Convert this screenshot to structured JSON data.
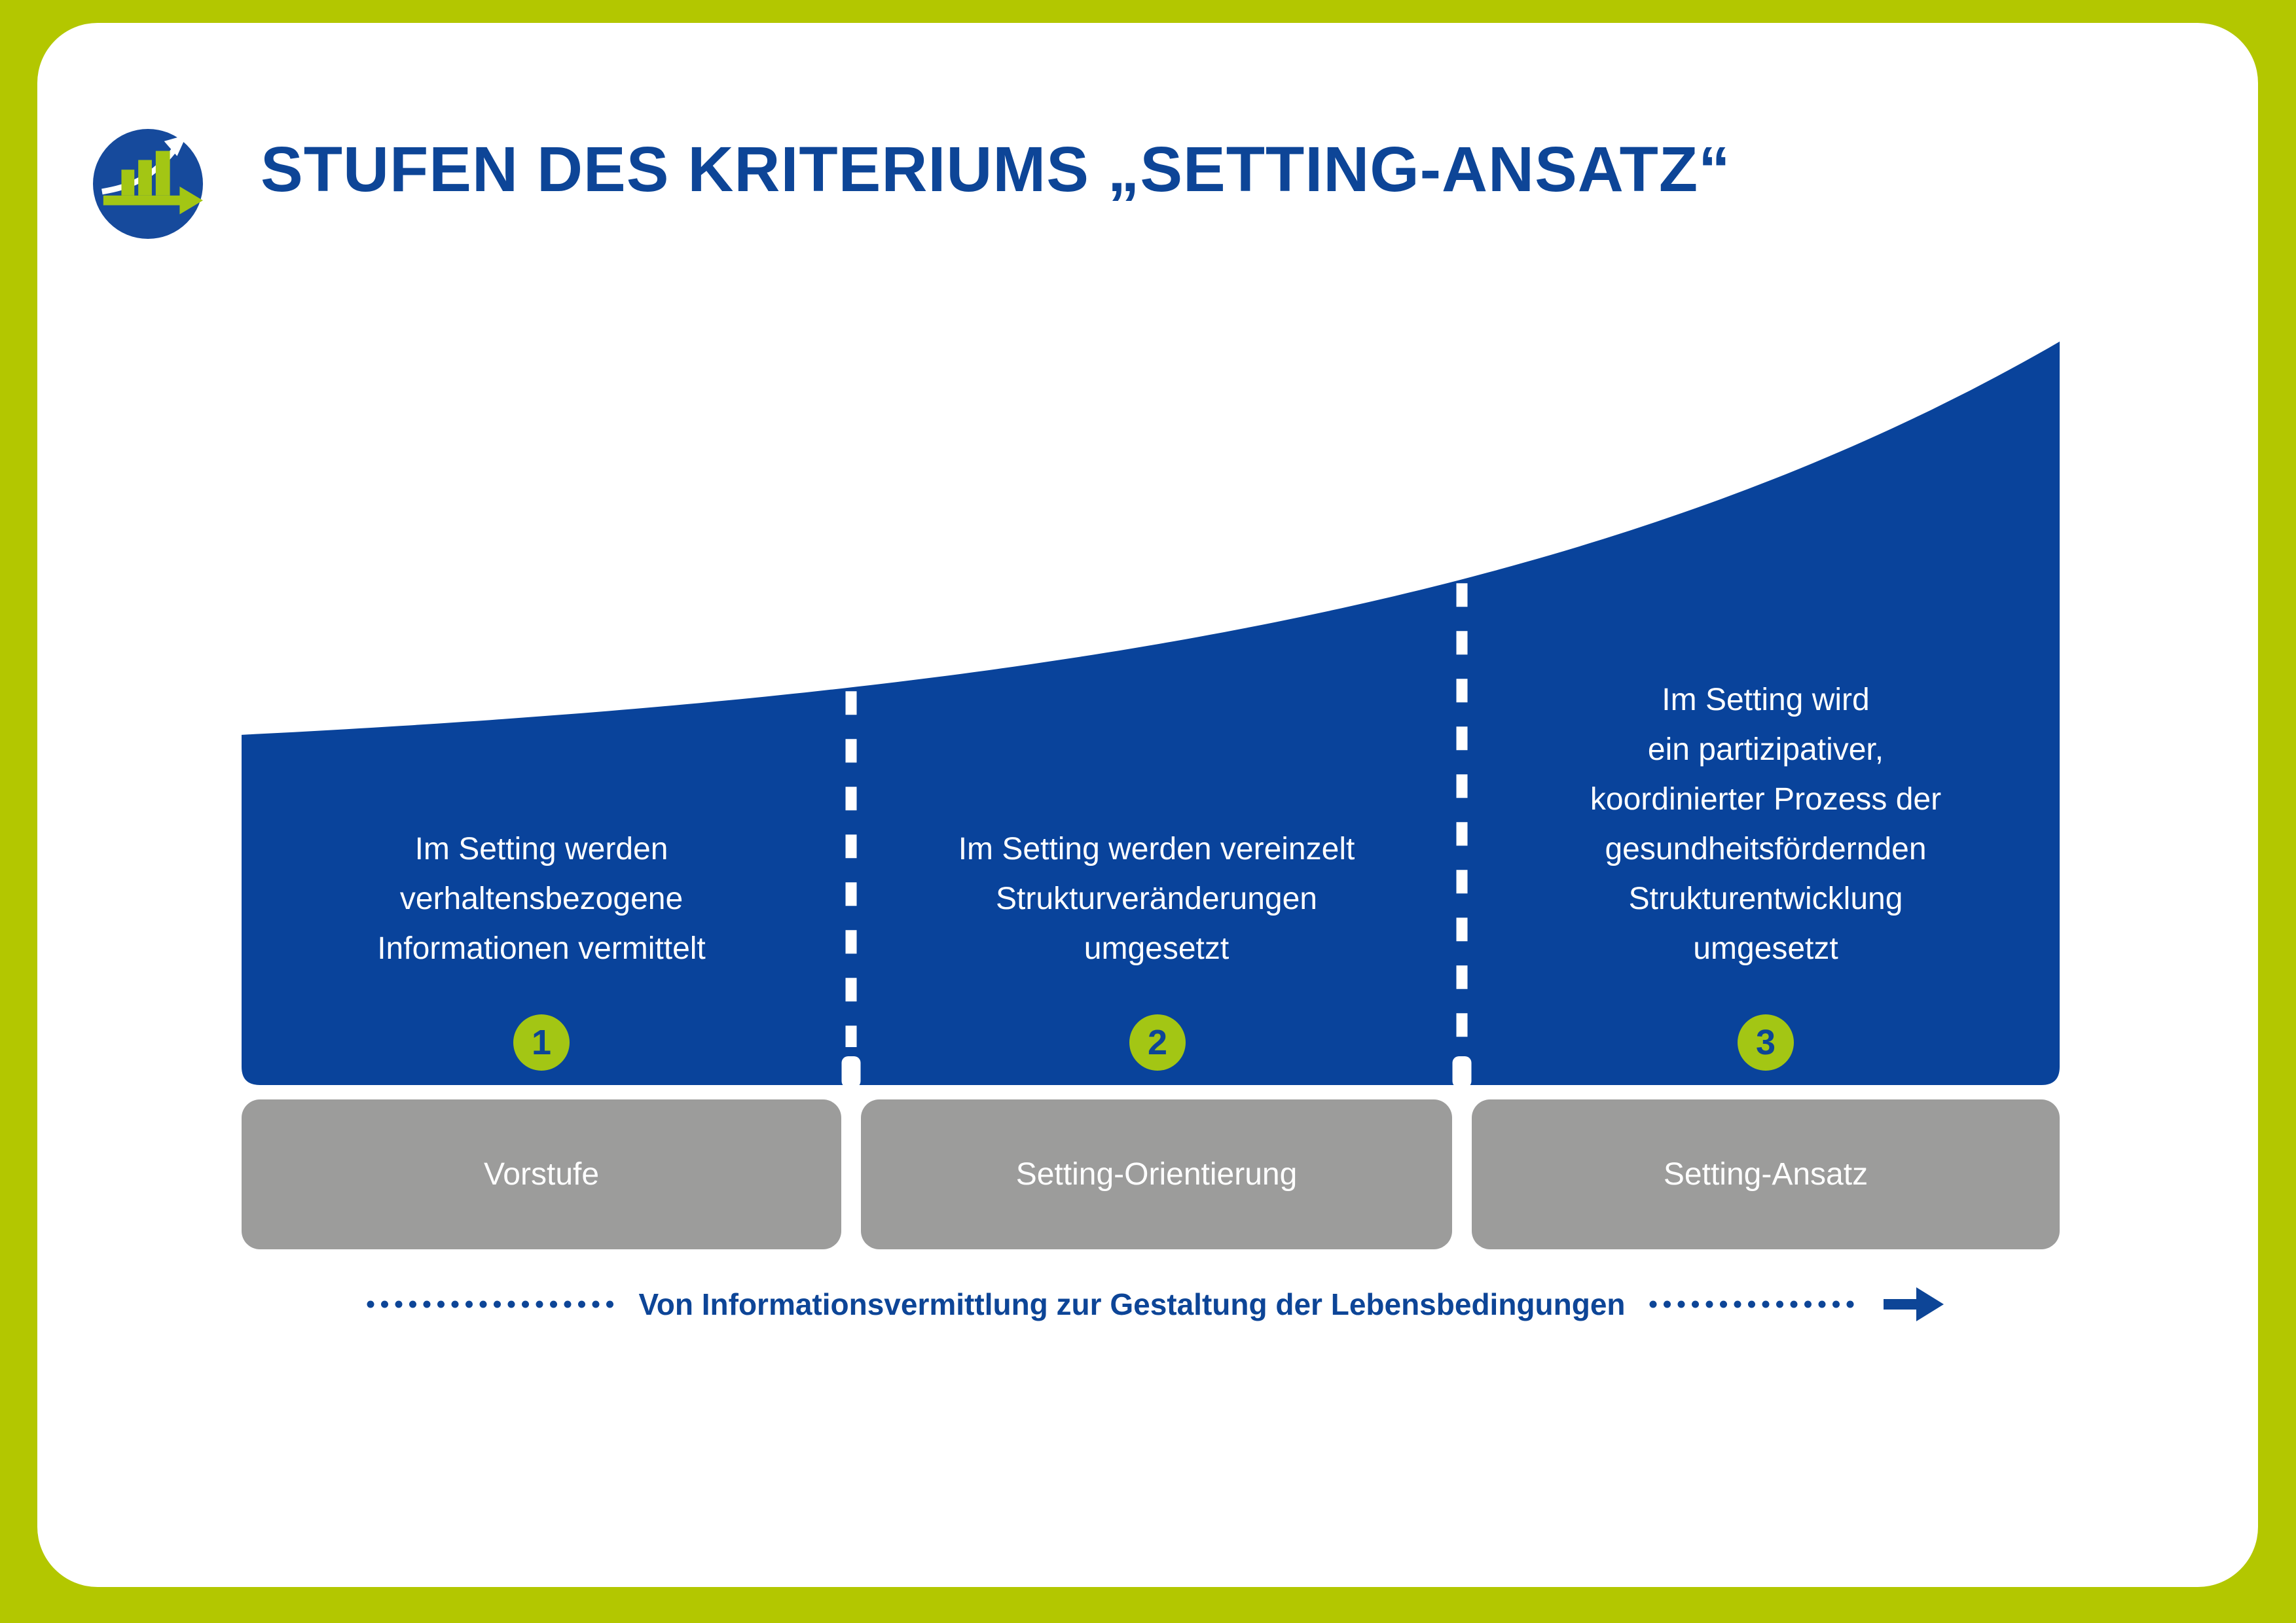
{
  "header": {
    "title": "STUFEN DES KRITERIUMS „SETTING-ANSATZ“"
  },
  "logo": {
    "description": "growth-chart-logo"
  },
  "diagram": {
    "sections": [
      {
        "number": "1",
        "lines": [
          "Im Setting werden",
          "verhaltensbezogene",
          "Informationen vermittelt"
        ],
        "description": "Im Setting werden verhaltensbezogene Informationen vermittelt",
        "stage_label": "Vorstufe"
      },
      {
        "number": "2",
        "lines": [
          "Im Setting werden vereinzelt",
          "Strukturveränderungen",
          "umgesetzt"
        ],
        "description": "Im Setting werden vereinzelt Strukturveränderungen umgesetzt",
        "stage_label": "Setting-Orientierung"
      },
      {
        "number": "3",
        "lines": [
          "Im Setting wird",
          "ein partizipativer,",
          "koordinierter Prozess der",
          "gesundheitsfördernden",
          "Strukturentwicklung",
          "umgesetzt"
        ],
        "description": "Im Setting wird ein partizipativer, koordinierter Prozess der gesundheitsfördernden Strukturentwicklung umgesetzt",
        "stage_label": "Setting-Ansatz"
      }
    ],
    "progress_note": "Von Informationsvermittlung zur Gestaltung der Lebensbedingungen"
  },
  "colors": {
    "background_border": "#b3c700",
    "panel": "#ffffff",
    "curve_blue": "#09439b",
    "accent_blue": "#0d4597",
    "badge_green": "#a3c614",
    "stage_gray": "#9c9c9b"
  }
}
